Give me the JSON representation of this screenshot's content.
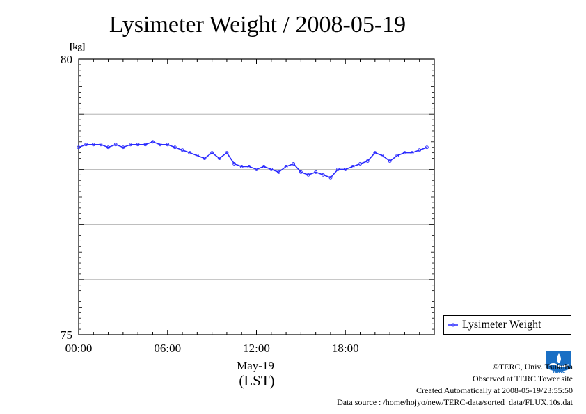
{
  "chart_data": {
    "type": "line",
    "title": "Lysimeter Weight / 2008-05-19",
    "ylabel": "[kg]",
    "xlabel_date": "May-19",
    "xlabel_tz": "(LST)",
    "ylim": [
      75,
      80
    ],
    "yticks": [
      75,
      80
    ],
    "ygrid": [
      76,
      77,
      78,
      79
    ],
    "xlim": [
      0,
      24
    ],
    "xticks": [
      {
        "hour": 0,
        "label": "00:00"
      },
      {
        "hour": 6,
        "label": "06:00"
      },
      {
        "hour": 12,
        "label": "12:00"
      },
      {
        "hour": 18,
        "label": "18:00"
      }
    ],
    "grid": true,
    "legend_position": "bottom-right",
    "series": [
      {
        "name": "Lysimeter Weight",
        "color": "#2b2bff",
        "x": [
          0,
          0.5,
          1,
          1.5,
          2,
          2.5,
          3,
          3.5,
          4,
          4.5,
          5,
          5.5,
          6,
          6.5,
          7,
          7.5,
          8,
          8.5,
          9,
          9.5,
          10,
          10.5,
          11,
          11.5,
          12,
          12.5,
          13,
          13.5,
          14,
          14.5,
          15,
          15.5,
          16,
          16.5,
          17,
          17.5,
          18,
          18.5,
          19,
          19.5,
          20,
          20.5,
          21,
          21.5,
          22,
          22.5,
          23,
          23.5
        ],
        "y": [
          78.4,
          78.45,
          78.45,
          78.45,
          78.4,
          78.45,
          78.4,
          78.45,
          78.45,
          78.45,
          78.5,
          78.45,
          78.45,
          78.4,
          78.35,
          78.3,
          78.25,
          78.2,
          78.3,
          78.2,
          78.3,
          78.1,
          78.05,
          78.05,
          78.0,
          78.05,
          78.0,
          77.95,
          78.05,
          78.1,
          77.95,
          77.9,
          77.95,
          77.9,
          77.85,
          78.0,
          78.0,
          78.05,
          78.1,
          78.15,
          78.3,
          78.25,
          78.15,
          78.25,
          78.3,
          78.3,
          78.35,
          78.4
        ]
      }
    ]
  },
  "legend": {
    "label": "Lysimeter Weight"
  },
  "credits": {
    "line1": "©TERC, Univ. Tsukuba",
    "line2": "Observed at TERC Tower site",
    "line3": "Created Automatically at 2008-05-19/23:55:50",
    "line4": "Data source : /home/hojyo/new/TERC-data/sorted_data/FLUX.10s.dat"
  },
  "logo": {
    "text": "TERC"
  }
}
